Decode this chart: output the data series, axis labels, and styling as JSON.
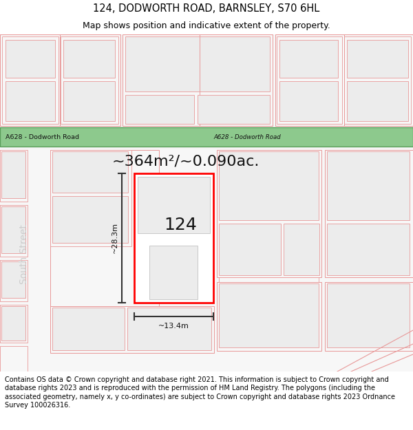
{
  "title": "124, DODWORTH ROAD, BARNSLEY, S70 6HL",
  "subtitle": "Map shows position and indicative extent of the property.",
  "footer": "Contains OS data © Crown copyright and database right 2021. This information is subject to Crown copyright and database rights 2023 and is reproduced with the permission of HM Land Registry. The polygons (including the associated geometry, namely x, y co-ordinates) are subject to Crown copyright and database rights 2023 Ordnance Survey 100026316.",
  "road_label_left": "A628 - Dodworth Road",
  "road_label_right": "A628 - Dodworth Road",
  "street_label": "South Street",
  "area_label": "~364m²/~0.090ac.",
  "width_label": "~13.4m",
  "height_label": "~28.3m",
  "property_number": "124",
  "title_fontsize": 10.5,
  "subtitle_fontsize": 9,
  "footer_fontsize": 7,
  "road_color": "#8dc98d",
  "road_border_color": "#5a9e5a",
  "lc": "#e89898",
  "bc": "#ececec",
  "map_bg": "#f7f7f7",
  "plot_border": "#ff0000",
  "dim_color": "#333333"
}
